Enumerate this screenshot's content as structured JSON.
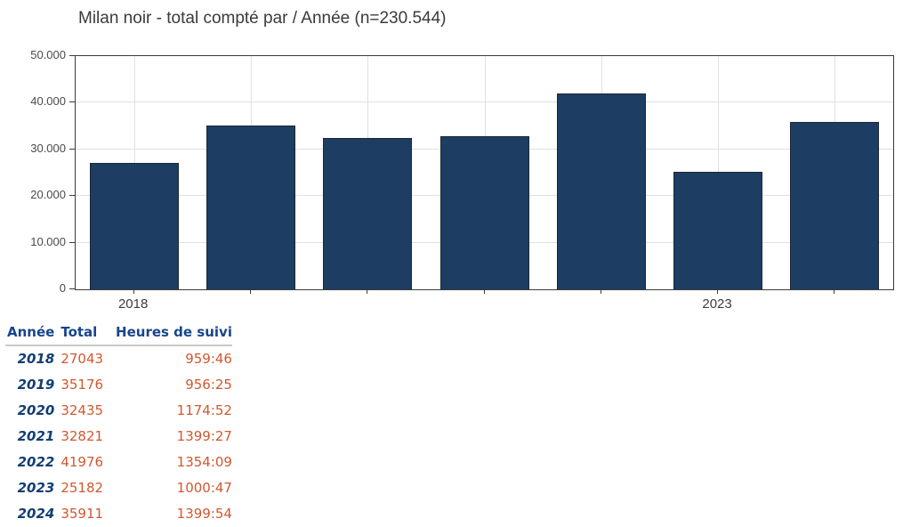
{
  "chart_data": {
    "type": "bar",
    "title": "Milan noir - total compté par / Année (n=230.544)",
    "categories": [
      "2018",
      "2019",
      "2020",
      "2021",
      "2022",
      "2023",
      "2024"
    ],
    "values": [
      27043,
      35176,
      32435,
      32821,
      41976,
      25182,
      35911
    ],
    "xlabel": "",
    "ylabel": "",
    "ylim": [
      0,
      50000
    ],
    "ytick_values": [
      0,
      10000,
      20000,
      30000,
      40000,
      50000
    ],
    "ytick_labels": [
      "0",
      "10.000",
      "20.000",
      "30.000",
      "40.000",
      "50.000"
    ],
    "xtick_labels_visible": [
      "2018",
      "",
      "",
      "",
      "",
      "2023",
      ""
    ],
    "grid": true,
    "legend_position": "none",
    "bar_color": "#1d3d63",
    "bar_border_color": "#1b2838"
  },
  "table": {
    "headers": [
      "Année",
      "Total",
      "Heures de suivi"
    ],
    "rows": [
      {
        "year": "2018",
        "total": "27043",
        "hours": "959:46"
      },
      {
        "year": "2019",
        "total": "35176",
        "hours": "956:25"
      },
      {
        "year": "2020",
        "total": "32435",
        "hours": "1174:52"
      },
      {
        "year": "2021",
        "total": "32821",
        "hours": "1399:27"
      },
      {
        "year": "2022",
        "total": "41976",
        "hours": "1354:09"
      },
      {
        "year": "2023",
        "total": "25182",
        "hours": "1000:47"
      },
      {
        "year": "2024",
        "total": "35911",
        "hours": "1399:54"
      }
    ]
  },
  "colors": {
    "bar": "#1d3d63",
    "table_header_blue": "#17458c",
    "table_year_navy": "#123e73",
    "table_value_orange": "#d0582f"
  }
}
